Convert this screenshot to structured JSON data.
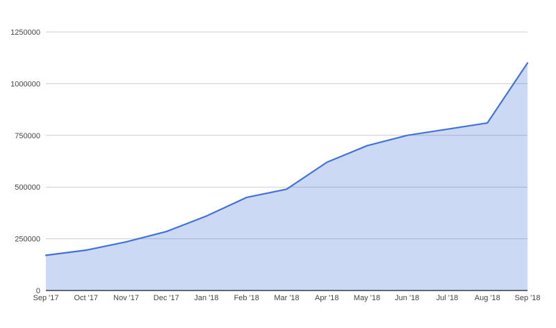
{
  "page": {
    "background": "#ffffff"
  },
  "chart_data": {
    "type": "area",
    "title": "",
    "xlabel": "",
    "ylabel": "",
    "legend": "none",
    "grid": true,
    "x": [
      "Sep '17",
      "Oct '17",
      "Nov '17",
      "Dec '17",
      "Jan '18",
      "Feb '18",
      "Mar '18",
      "Apr '18",
      "May '18",
      "Jun '18",
      "Jul '18",
      "Aug '18",
      "Sep '18"
    ],
    "values": [
      170000,
      195000,
      235000,
      285000,
      360000,
      450000,
      490000,
      620000,
      700000,
      750000,
      780000,
      810000,
      1100000
    ],
    "ylim": [
      0,
      1250000
    ],
    "y_axis": {
      "tick_values": [
        0,
        250000,
        500000,
        750000,
        1000000,
        1250000
      ],
      "tick_labels": [
        "0",
        "250000",
        "500000",
        "750000",
        "1000000",
        "1250000"
      ]
    },
    "colors": {
      "line": "#4272d9",
      "area_fill": "#4272d9",
      "area_opacity": 0.27,
      "gridline": "#cccccc",
      "baseline": "#333333",
      "axis_text": "#444444",
      "background": "#ffffff"
    }
  }
}
